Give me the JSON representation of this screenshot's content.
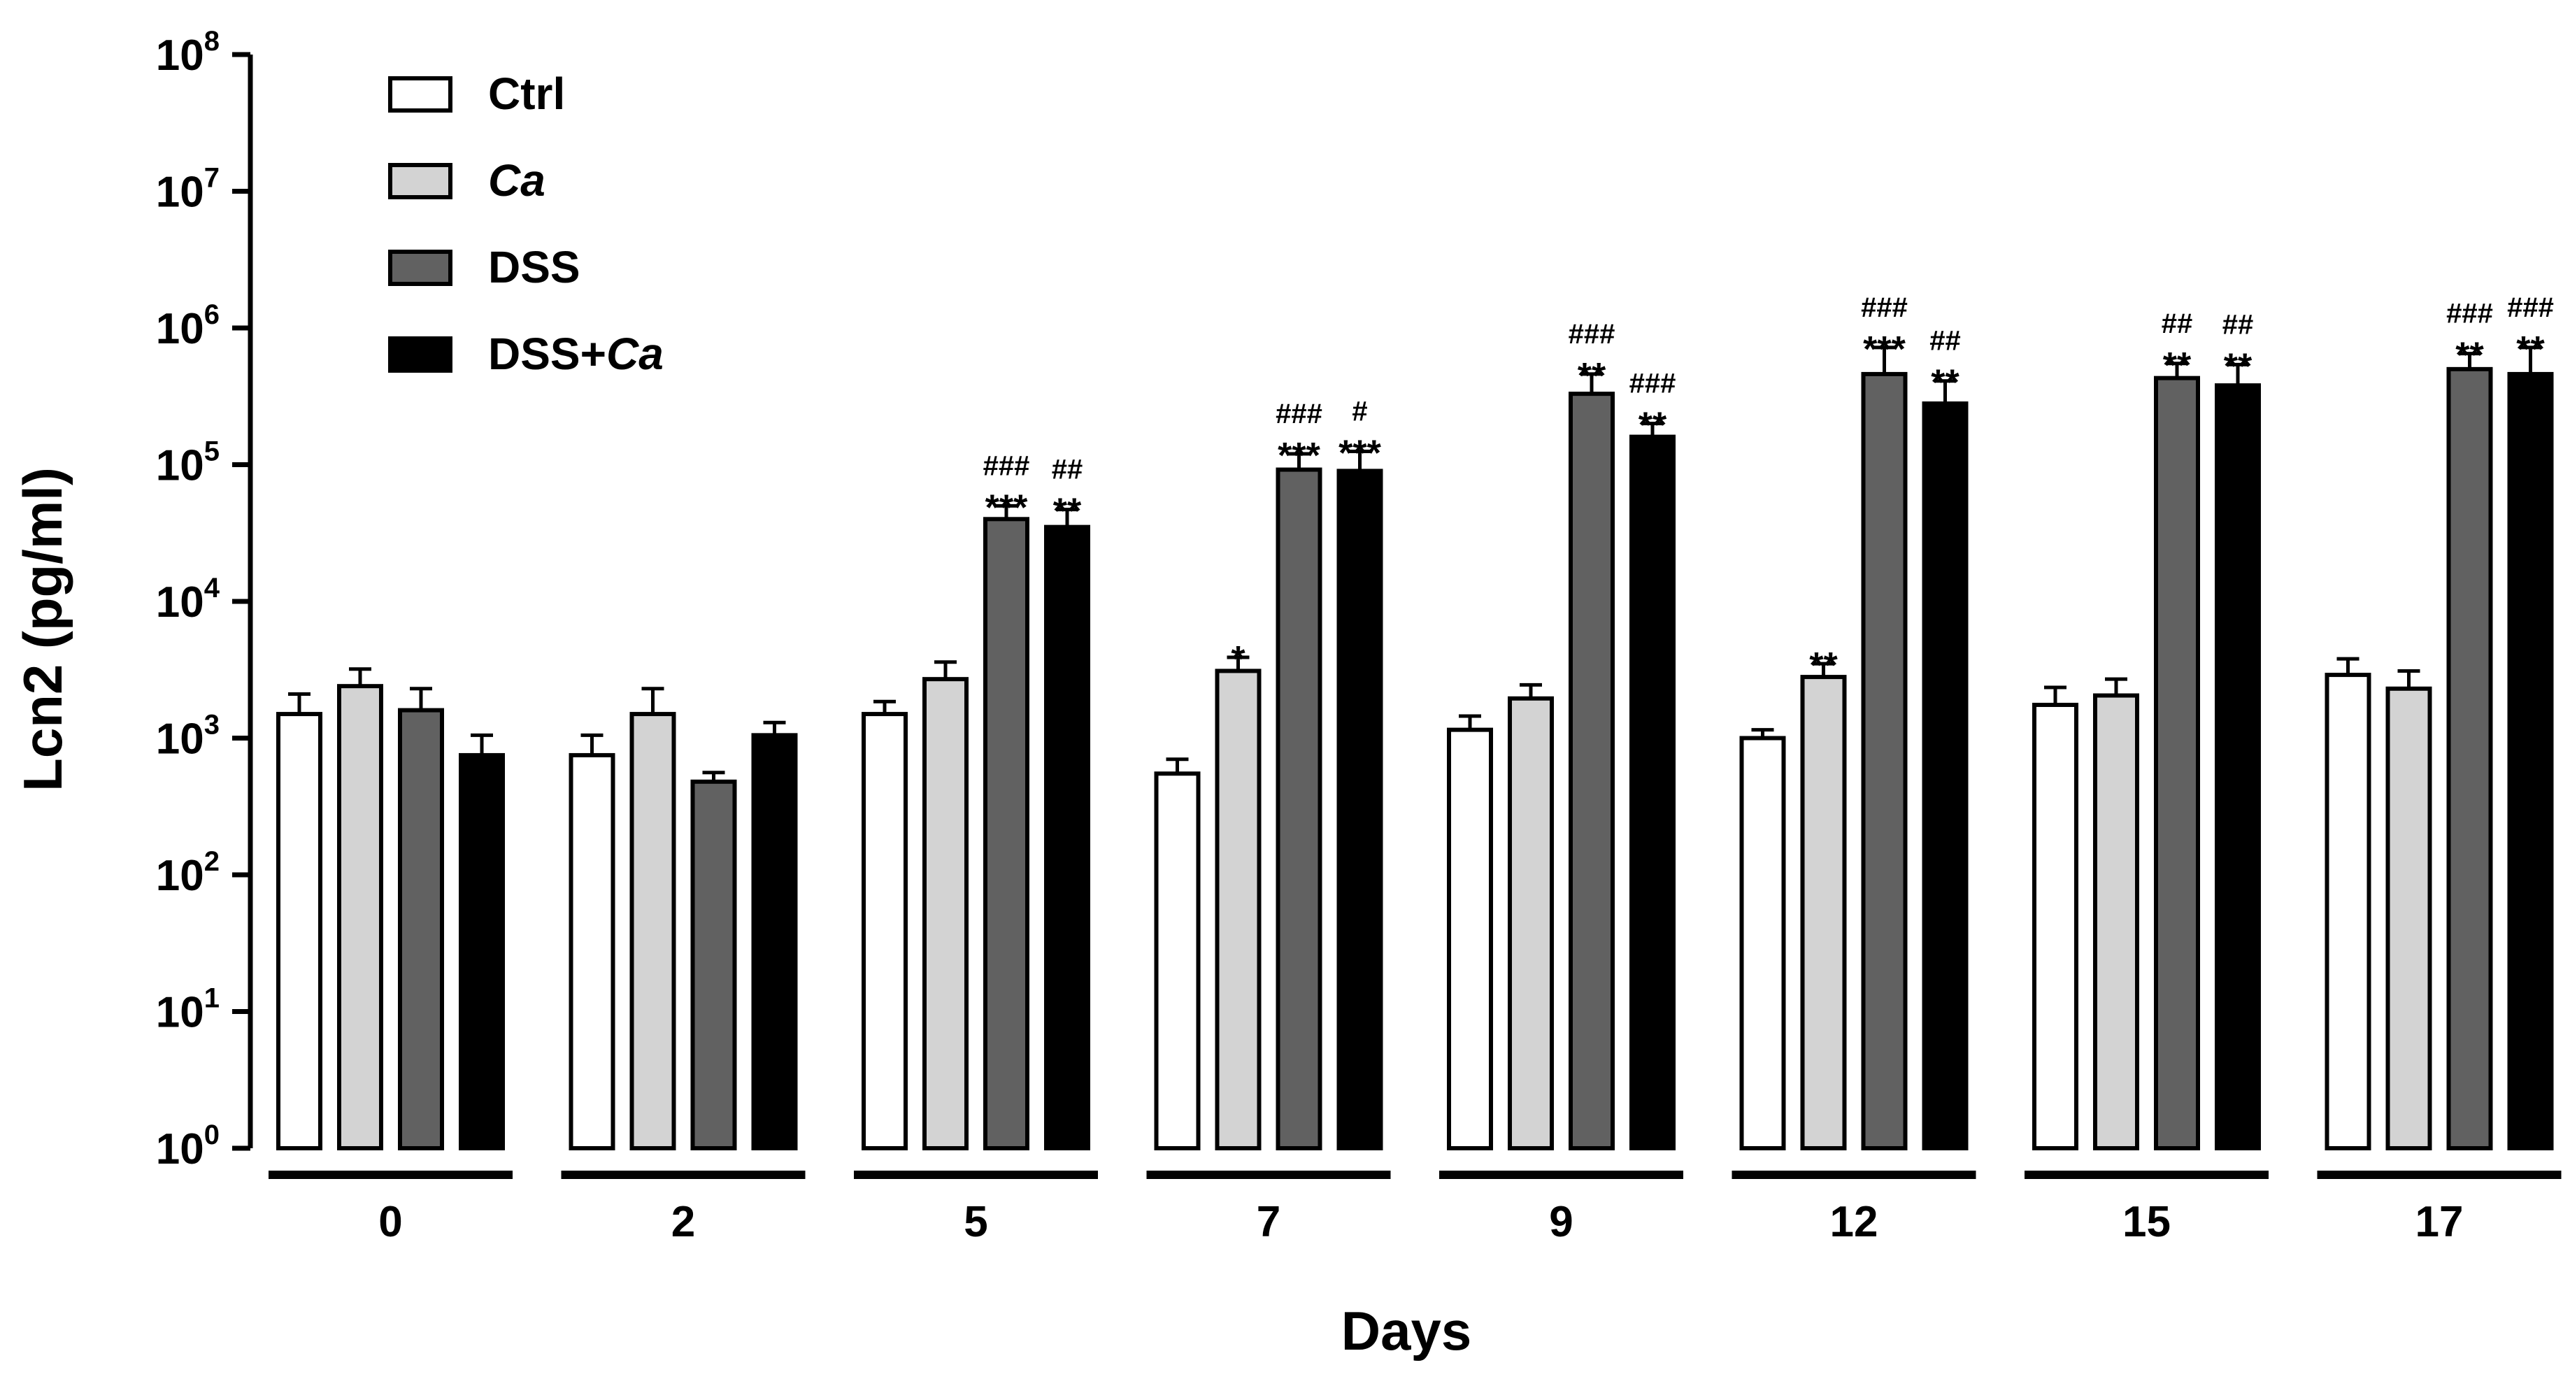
{
  "chart_data": {
    "type": "bar",
    "title": "",
    "xlabel": "Days",
    "ylabel": "Lcn2 (pg/ml)",
    "yscale": "log10",
    "ylim": [
      1,
      100000000
    ],
    "y_tick_exponents": [
      0,
      1,
      2,
      3,
      4,
      5,
      6,
      7,
      8
    ],
    "y_tick_base": "10",
    "categories": [
      "0",
      "2",
      "5",
      "7",
      "9",
      "12",
      "15",
      "17"
    ],
    "legend_position": "top-left",
    "series": [
      {
        "name": "Ctrl",
        "color": "#ffffff",
        "values": [
          1500,
          750,
          1500,
          550,
          1150,
          1000,
          1750,
          2900
        ],
        "errors": [
          2100,
          1050,
          1850,
          700,
          1450,
          1150,
          2350,
          3800
        ],
        "stars": [
          "",
          "",
          "",
          "",
          "",
          "",
          "",
          ""
        ],
        "hashes": [
          "",
          "",
          "",
          "",
          "",
          "",
          "",
          ""
        ]
      },
      {
        "name": "Ca",
        "italic": true,
        "color": "#d3d3d3",
        "values": [
          2400,
          1500,
          2700,
          3100,
          1950,
          2800,
          2050,
          2300
        ],
        "errors": [
          3200,
          2300,
          3600,
          3900,
          2450,
          3500,
          2700,
          3100
        ],
        "stars": [
          "",
          "",
          "",
          "*",
          "",
          "**",
          "",
          ""
        ],
        "hashes": [
          "",
          "",
          "",
          "",
          "",
          "",
          "",
          ""
        ]
      },
      {
        "name": "DSS",
        "color": "#616161",
        "values": [
          1600,
          480,
          40000,
          92000,
          330000,
          460000,
          430000,
          500000
        ],
        "errors": [
          2300,
          560,
          50000,
          120000,
          460000,
          720000,
          550000,
          650000
        ],
        "stars": [
          "",
          "",
          "***",
          "***",
          "**",
          "***",
          "**",
          "**"
        ],
        "hashes": [
          "",
          "",
          "###",
          "###",
          "###",
          "###",
          "##",
          "###"
        ]
      },
      {
        "name": "DSS+Ca",
        "italic_suffix": "Ca",
        "color": "#000000",
        "values": [
          750,
          1050,
          35000,
          90000,
          160000,
          280000,
          380000,
          460000
        ],
        "errors": [
          1050,
          1300,
          47000,
          125000,
          200000,
          410000,
          540000,
          720000
        ],
        "stars": [
          "",
          "",
          "**",
          "***",
          "**",
          "**",
          "**",
          "**"
        ],
        "hashes": [
          "",
          "",
          "##",
          "#",
          "###",
          "##",
          "##",
          "###"
        ]
      }
    ]
  }
}
